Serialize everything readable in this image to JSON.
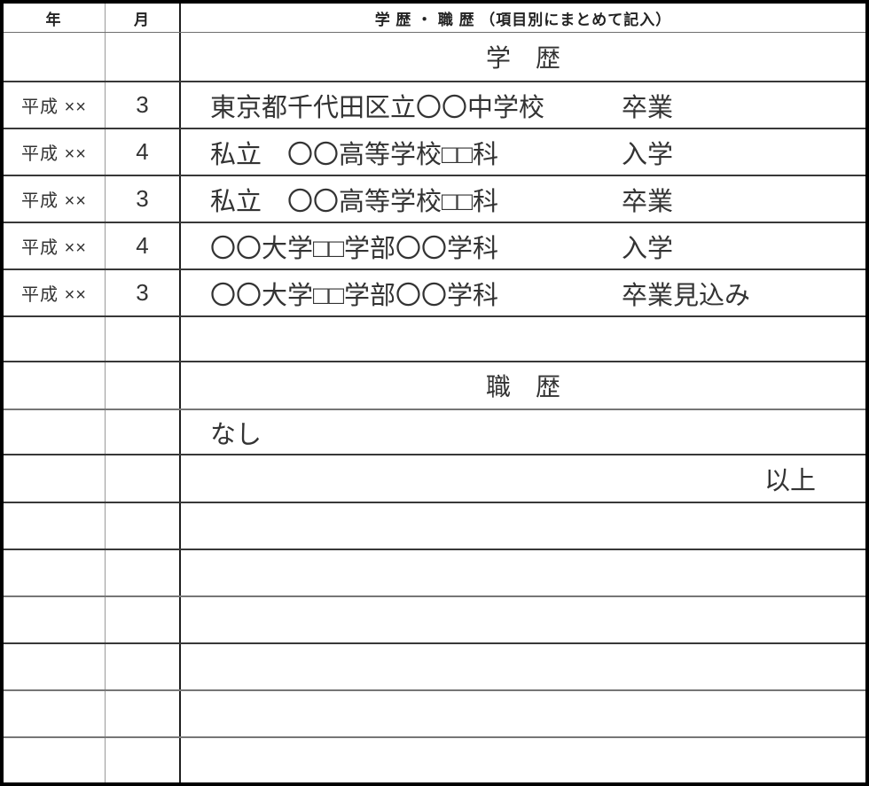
{
  "colors": {
    "ink": "#333333",
    "border": "#000000",
    "line_dark": "#383838",
    "line_gray": "#767676"
  },
  "header": {
    "year": "年",
    "month": "月",
    "title": "学 歴 ・ 職 歴 （項目別にまとめて記入）"
  },
  "rows": [
    {
      "kind": "section",
      "label": "学　歴"
    },
    {
      "kind": "entry",
      "year": "平成 ××",
      "month": "3",
      "school": "東京都千代田区立〇〇中学校",
      "status": "卒業"
    },
    {
      "kind": "entry",
      "year": "平成 ××",
      "month": "4",
      "school": "私立　〇〇高等学校□□科",
      "status": "入学"
    },
    {
      "kind": "entry",
      "year": "平成 ××",
      "month": "3",
      "school": "私立　〇〇高等学校□□科",
      "status": "卒業"
    },
    {
      "kind": "entry",
      "year": "平成 ××",
      "month": "4",
      "school": "〇〇大学□□学部〇〇学科",
      "status": "入学"
    },
    {
      "kind": "entry",
      "year": "平成 ××",
      "month": "3",
      "school": "〇〇大学□□学部〇〇学科",
      "status": "卒業見込み"
    },
    {
      "kind": "blank"
    },
    {
      "kind": "section",
      "label": "職　歴"
    },
    {
      "kind": "note",
      "text": "なし"
    },
    {
      "kind": "end",
      "text": "以上"
    },
    {
      "kind": "blank"
    },
    {
      "kind": "blank"
    },
    {
      "kind": "blank"
    },
    {
      "kind": "blank"
    },
    {
      "kind": "blank"
    },
    {
      "kind": "blank"
    }
  ]
}
